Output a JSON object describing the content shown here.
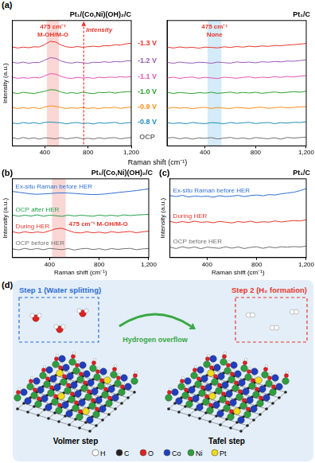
{
  "chart_data": [
    {
      "type": "line",
      "panel_label": "(a)",
      "title": "Pt₁/(Co,Ni)(OH)₂/C",
      "x_label": "Raman shift (cm⁻¹)",
      "y_label": "Intensity (a.u.)",
      "x": [
        100,
        150,
        200,
        250,
        300,
        350,
        400,
        450,
        500,
        550,
        600,
        650,
        700,
        750,
        800,
        850,
        900,
        950,
        1000,
        1050,
        1100,
        1150,
        1200
      ],
      "xlim": [
        100,
        1200
      ],
      "xticks": [
        400,
        800,
        1200
      ],
      "ylim": [
        -0.5,
        7.8
      ],
      "yticks": [],
      "tick_labels": "x",
      "grid": false,
      "series": [
        {
          "name": "-1.3 V",
          "color": "#e8372c",
          "values": [
            6.05,
            5.98,
            6.04,
            6.0,
            6.06,
            6.05,
            6.22,
            6.42,
            6.38,
            6.18,
            6.06,
            6.02,
            6.08,
            6.03,
            6.07,
            6.1,
            6.06,
            6.14,
            6.12,
            6.2,
            6.18,
            6.25,
            6.3
          ]
        },
        {
          "name": "-1.2 V",
          "color": "#9b59b6",
          "values": [
            5.04,
            4.98,
            5.05,
            4.97,
            5.03,
            5.02,
            5.18,
            5.34,
            5.3,
            5.12,
            5.02,
            4.98,
            5.05,
            5.0,
            4.97,
            5.04,
            5.02,
            5.07,
            5.03,
            5.09,
            5.06,
            5.12,
            5.15
          ]
        },
        {
          "name": "-1.1 V",
          "color": "#e754b3",
          "values": [
            4.05,
            3.97,
            4.02,
            3.98,
            4.04,
            4.0,
            4.14,
            4.28,
            4.26,
            4.1,
            4.0,
            3.97,
            4.04,
            3.99,
            4.03,
            3.97,
            4.05,
            4.01,
            4.06,
            4.03,
            4.08,
            4.05,
            4.1
          ]
        },
        {
          "name": "-1.0 V",
          "color": "#2ca02c",
          "values": [
            3.03,
            2.96,
            3.05,
            3.0,
            2.97,
            3.04,
            3.12,
            3.22,
            3.2,
            3.07,
            2.98,
            3.03,
            2.97,
            3.05,
            3.0,
            2.96,
            3.04,
            3.02,
            3.06,
            2.99,
            3.05,
            3.08,
            3.1
          ]
        },
        {
          "name": "-0.9 V",
          "color": "#ff8c1a",
          "values": [
            2.04,
            1.97,
            2.03,
            1.98,
            2.05,
            1.96,
            2.08,
            2.15,
            2.12,
            2.04,
            1.97,
            2.03,
            1.99,
            2.05,
            1.98,
            2.02,
            1.96,
            2.04,
            2.01,
            2.06,
            1.98,
            2.04,
            2.07
          ]
        },
        {
          "name": "-0.8 V",
          "color": "#1f8fb4",
          "values": [
            1.02,
            0.96,
            1.05,
            0.99,
            1.04,
            0.97,
            1.06,
            1.08,
            1.05,
            1.03,
            0.96,
            1.02,
            1.05,
            0.98,
            1.01,
            0.95,
            1.04,
            0.99,
            1.03,
            1.06,
            0.97,
            1.02,
            1.05
          ]
        },
        {
          "name": "OCP",
          "color": "#707070",
          "values": [
            0.05,
            -0.04,
            0.06,
            -0.02,
            0.03,
            -0.05,
            0.04,
            0.0,
            -0.03,
            0.05,
            -0.04,
            0.02,
            0.06,
            -0.03,
            0.01,
            -0.05,
            0.04,
            -0.02,
            0.03,
            0.05,
            -0.04,
            0.02,
            0.06
          ]
        }
      ],
      "annotations": [
        {
          "text": [
            "475 cm⁻¹",
            "M-OH/M-O"
          ],
          "band": [
            420,
            530
          ],
          "band_color": "#f4a6a0",
          "color": "#e8372c"
        },
        {
          "text": [
            "Intensity"
          ],
          "arrow_x": 760,
          "color": "#e8372c"
        }
      ]
    },
    {
      "type": "line",
      "title": "Pt₁/C",
      "x": [
        100,
        150,
        200,
        250,
        300,
        350,
        400,
        450,
        500,
        550,
        600,
        650,
        700,
        750,
        800,
        850,
        900,
        950,
        1000,
        1050,
        1100,
        1150,
        1200
      ],
      "xlim": [
        100,
        1200
      ],
      "xticks": [
        400,
        800,
        1200
      ],
      "ylim": [
        -0.5,
        7.8
      ],
      "yticks": [],
      "tick_labels": "x",
      "grid": false,
      "series": [
        {
          "name": "-1.3 V",
          "color": "#e8372c",
          "values": [
            6.04,
            5.98,
            6.05,
            6.0,
            6.03,
            5.97,
            6.04,
            6.02,
            5.99,
            6.06,
            6.02,
            6.08,
            6.04,
            6.1,
            6.06,
            6.12,
            6.09,
            6.15,
            6.13,
            6.18,
            6.2,
            6.24,
            6.28
          ]
        },
        {
          "name": "-1.2 V",
          "color": "#9b59b6",
          "values": [
            5.03,
            4.97,
            5.05,
            5.0,
            4.98,
            5.04,
            5.02,
            4.97,
            5.05,
            5.01,
            4.98,
            5.06,
            5.02,
            5.05,
            5.0,
            5.07,
            5.04,
            5.09,
            5.06,
            5.12,
            5.1,
            5.15,
            5.2
          ]
        },
        {
          "name": "-1.1 V",
          "color": "#e754b3",
          "values": [
            4.0,
            4.05,
            3.97,
            4.03,
            4.06,
            3.98,
            4.04,
            4.0,
            3.96,
            4.05,
            4.02,
            3.98,
            4.04,
            4.07,
            4.0,
            4.05,
            4.02,
            4.08,
            4.04,
            4.1,
            4.06,
            4.12,
            4.15
          ]
        },
        {
          "name": "-1.0 V",
          "color": "#2ca02c",
          "values": [
            3.05,
            2.97,
            3.04,
            3.0,
            2.96,
            3.03,
            2.99,
            3.05,
            2.98,
            3.02,
            3.06,
            2.99,
            3.04,
            3.0,
            3.05,
            2.98,
            3.03,
            3.07,
            3.01,
            3.05,
            3.09,
            3.06,
            3.12
          ]
        },
        {
          "name": "-0.9 V",
          "color": "#ff8c1a",
          "values": [
            1.98,
            2.05,
            2.0,
            2.04,
            1.96,
            2.03,
            2.05,
            1.98,
            2.04,
            2.0,
            1.97,
            2.05,
            2.02,
            1.98,
            2.04,
            2.06,
            1.99,
            2.03,
            2.07,
            2.02,
            2.05,
            2.08,
            2.1
          ]
        },
        {
          "name": "-0.8 V",
          "color": "#1f8fb4",
          "values": [
            1.04,
            0.98,
            1.03,
            0.96,
            1.05,
            1.0,
            0.97,
            1.04,
            1.02,
            0.96,
            1.05,
            0.99,
            1.03,
            1.06,
            0.98,
            1.02,
            1.05,
            0.97,
            1.04,
            1.01,
            1.06,
            1.05,
            1.09
          ]
        },
        {
          "name": "OCP",
          "color": "#707070",
          "values": [
            0.02,
            0.06,
            -0.03,
            0.04,
            -0.05,
            0.03,
            0.0,
            0.05,
            -0.04,
            0.02,
            0.06,
            -0.02,
            0.03,
            -0.04,
            0.05,
            0.01,
            -0.03,
            0.04,
            -0.05,
            0.06,
            0.02,
            0.05,
            0.08
          ]
        }
      ],
      "annotations": [
        {
          "text": [
            "475 cm⁻¹",
            "None"
          ],
          "band": [
            420,
            530
          ],
          "band_color": "#9fd3ef",
          "color": "#e8372c"
        }
      ]
    },
    {
      "type": "line",
      "panel_label": "(b)",
      "title": "Pt₁/(Co,Ni)(OH)₂/C",
      "x_label": "Raman shift (cm⁻¹)",
      "y_label": "Intensity (a.u.)",
      "x": [
        100,
        150,
        200,
        250,
        300,
        350,
        400,
        450,
        500,
        550,
        600,
        650,
        700,
        750,
        800,
        850,
        900,
        950,
        1000,
        1050,
        1100,
        1150,
        1200
      ],
      "xlim": [
        100,
        1200
      ],
      "xticks": [
        400,
        800,
        1200
      ],
      "ylim": [
        -0.5,
        4.2
      ],
      "yticks": [],
      "tick_labels": "x",
      "grid": false,
      "series": [
        {
          "name": "Ex-situ Raman before HER",
          "color": "#2f6fd1",
          "values": [
            3.45,
            3.4,
            3.35,
            3.3,
            3.28,
            3.3,
            3.32,
            3.35,
            3.36,
            3.35,
            3.33,
            3.3,
            3.28,
            3.26,
            3.27,
            3.3,
            3.34,
            3.38,
            3.42,
            3.46,
            3.5,
            3.55,
            3.6
          ]
        },
        {
          "name": "OCP after HER",
          "color": "#22a04b",
          "values": [
            2.04,
            1.97,
            2.03,
            1.98,
            2.05,
            1.97,
            2.03,
            2.0,
            1.96,
            2.04,
            1.98,
            2.03,
            2.0,
            1.97,
            2.04,
            1.99,
            2.03,
            1.98,
            2.05,
            2.01,
            2.04,
            2.06,
            2.08
          ]
        },
        {
          "name": "During HER",
          "color": "#e8372c",
          "values": [
            1.05,
            0.96,
            1.04,
            0.98,
            1.03,
            0.99,
            1.1,
            1.22,
            1.25,
            1.12,
            1.0,
            0.97,
            1.04,
            0.98,
            1.02,
            0.96,
            1.05,
            0.99,
            1.03,
            1.06,
            0.98,
            1.04,
            1.08
          ]
        },
        {
          "name": "OCP before HER",
          "color": "#707070",
          "values": [
            0.02,
            -0.04,
            0.05,
            -0.02,
            0.04,
            -0.03,
            0.05,
            0.01,
            -0.03,
            0.04,
            -0.05,
            0.02,
            0.05,
            -0.02,
            0.03,
            -0.04,
            0.04,
            -0.01,
            0.03,
            0.05,
            -0.03,
            0.02,
            0.04
          ]
        }
      ],
      "annotations": [
        {
          "text": [
            "475 cm⁻¹",
            "M-OH/M-O"
          ],
          "band": [
            420,
            530
          ],
          "band_color": "#f4a6a0",
          "color": "#e8372c",
          "y": 1.5
        }
      ]
    },
    {
      "type": "line",
      "panel_label": "(c)",
      "title": "Pt₁/C",
      "x_label": "Raman shift (cm⁻¹)",
      "y_label": "Intensity (a.u.)",
      "x": [
        100,
        150,
        200,
        250,
        300,
        350,
        400,
        450,
        500,
        550,
        600,
        650,
        700,
        750,
        800,
        850,
        900,
        950,
        1000,
        1050,
        1100,
        1150,
        1200
      ],
      "xlim": [
        100,
        1200
      ],
      "xticks": [
        400,
        800,
        1200
      ],
      "ylim": [
        -0.5,
        3.5
      ],
      "yticks": [],
      "tick_labels": "x",
      "grid": false,
      "series": [
        {
          "name": "Ex-situ Raman before HER",
          "color": "#2f6fd1",
          "values": [
            2.65,
            2.6,
            2.66,
            2.58,
            2.63,
            2.6,
            2.62,
            2.57,
            2.64,
            2.6,
            2.62,
            2.66,
            2.6,
            2.65,
            2.68,
            2.64,
            2.7,
            2.68,
            2.74,
            2.78,
            2.82,
            2.9,
            3.0
          ]
        },
        {
          "name": "During HER",
          "color": "#e8372c",
          "values": [
            1.34,
            1.27,
            1.33,
            1.28,
            1.35,
            1.29,
            1.32,
            1.27,
            1.34,
            1.3,
            1.26,
            1.33,
            1.29,
            1.35,
            1.28,
            1.32,
            1.3,
            1.36,
            1.31,
            1.35,
            1.38,
            1.36,
            1.42
          ]
        },
        {
          "name": "OCP before HER",
          "color": "#707070",
          "values": [
            0.03,
            -0.04,
            0.05,
            -0.02,
            0.04,
            -0.05,
            0.03,
            0.0,
            -0.03,
            0.05,
            -0.02,
            0.04,
            -0.04,
            0.02,
            0.05,
            -0.03,
            0.04,
            0.0,
            0.05,
            0.03,
            0.06,
            0.04,
            0.08
          ]
        }
      ]
    }
  ],
  "diagram": {
    "panel_label": "(d)",
    "step1": "Step 1 (Water splitting)",
    "overflow": "Hydrogen overflow",
    "step2": "Step 2 (H₂ formation)",
    "left_caption": "Volmer step",
    "right_caption": "Tafel step",
    "legend": [
      {
        "label": "H",
        "color": "#ffffff"
      },
      {
        "label": "C",
        "color": "#222222"
      },
      {
        "label": "O",
        "color": "#e02020"
      },
      {
        "label": "Co",
        "color": "#1f3fbf"
      },
      {
        "label": "Ni",
        "color": "#2e9e3e"
      },
      {
        "label": "Pt",
        "color": "#f0dc1a"
      }
    ]
  }
}
